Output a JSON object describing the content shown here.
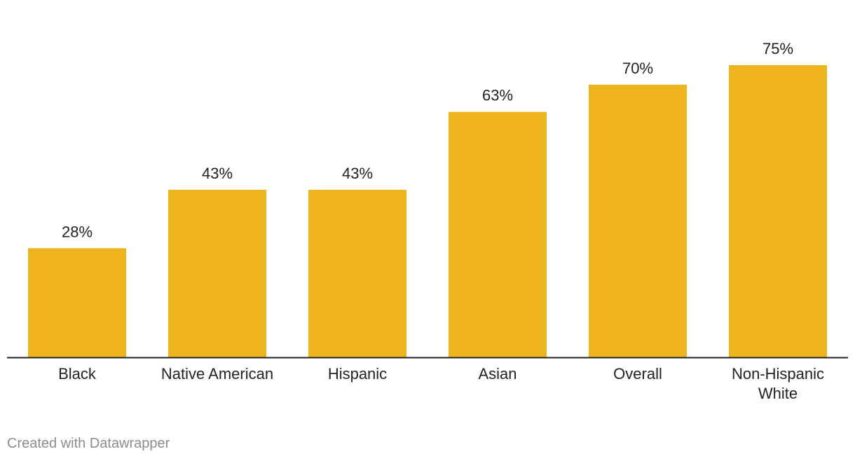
{
  "chart_data": {
    "type": "bar",
    "categories": [
      [
        "Black"
      ],
      [
        "Native American"
      ],
      [
        "Hispanic"
      ],
      [
        "Asian"
      ],
      [
        "Overall"
      ],
      [
        "Non-Hispanic",
        "White"
      ]
    ],
    "values": [
      28,
      43,
      43,
      63,
      70,
      75
    ],
    "value_labels": [
      "28%",
      "43%",
      "43%",
      "63%",
      "70%",
      "75%"
    ],
    "value_unit": "%",
    "ylim": [
      0,
      75
    ],
    "grid": false,
    "bar_color": "#EDB41E",
    "baseline_color": "#222222"
  },
  "footer": {
    "credit": "Created with Datawrapper"
  }
}
